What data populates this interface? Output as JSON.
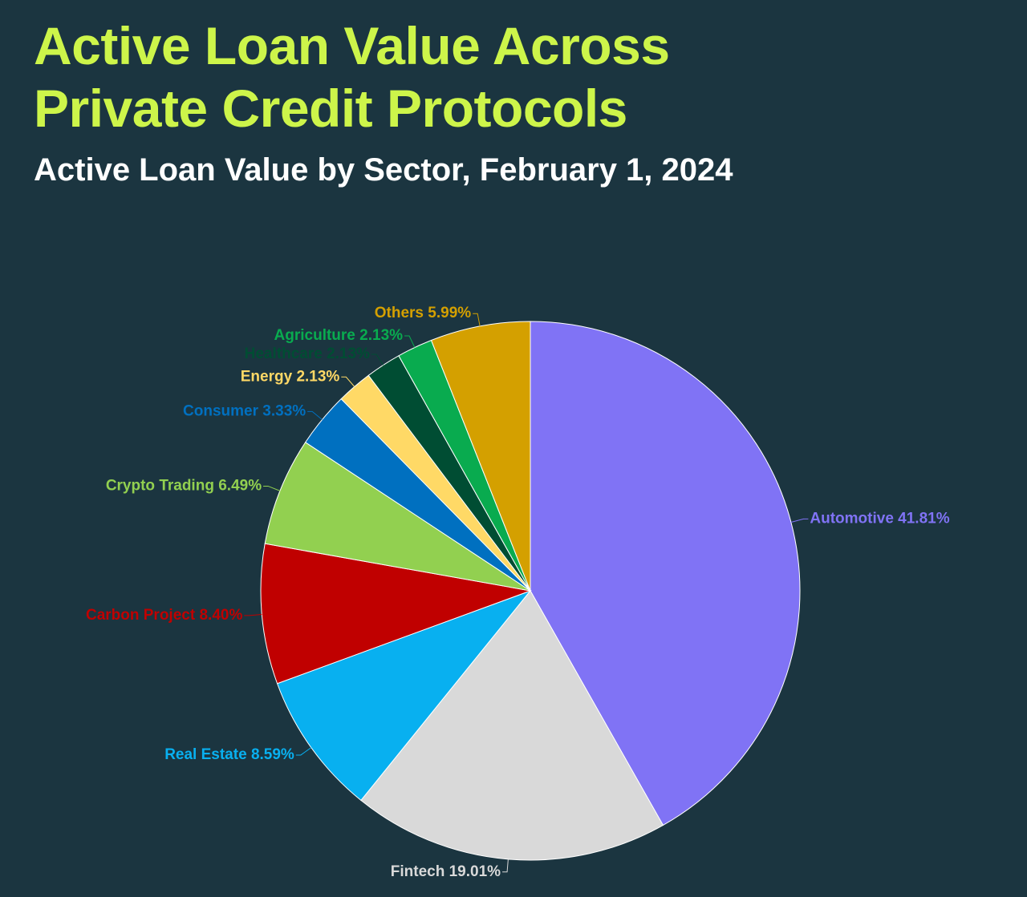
{
  "chart_data": {
    "type": "pie",
    "title": "Active Loan Value Across Private Credit Protocols",
    "subtitle": "Active Loan Value by Sector, February 1, 2024",
    "categories": [
      "Automotive",
      "Fintech",
      "Real Estate",
      "Carbon Project",
      "Crypto Trading",
      "Consumer",
      "Energy",
      "Healthcare",
      "Agriculture",
      "Others"
    ],
    "values": [
      41.81,
      19.01,
      8.59,
      8.4,
      6.49,
      3.33,
      2.13,
      2.13,
      2.13,
      5.99
    ],
    "value_labels": [
      "41.81%",
      "19.01%",
      "8.59%",
      "8.40%",
      "6.49%",
      "3.33%",
      "2.13%",
      "2.13%",
      "2.13%",
      "5.99%"
    ],
    "colors": [
      "#8073f5",
      "#d9d9d9",
      "#08b0f0",
      "#c00000",
      "#92d050",
      "#0070c0",
      "#ffd966",
      "#004d33",
      "#09ab4f",
      "#d4a000"
    ]
  }
}
